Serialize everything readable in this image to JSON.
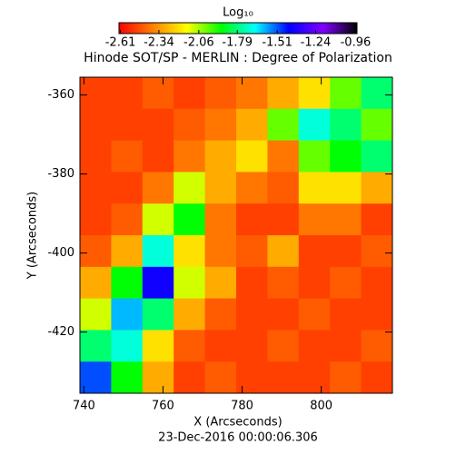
{
  "chart_data": {
    "type": "heatmap",
    "title": "Hinode SOT/SP - MERLIN : Degree of Polarization",
    "colorbar_label": "Log₁₀",
    "x_label": "X (Arcseconds)",
    "y_label": "Y (Arcseconds)",
    "subtitle": "23-Dec-2016 00:00:06.306",
    "xlim": [
      739,
      818
    ],
    "ylim": [
      -435.5,
      -355.5
    ],
    "xticks": [
      740,
      760,
      780,
      800
    ],
    "yticks": [
      -360,
      -380,
      -400,
      -420
    ],
    "colorbar_lim": [
      -2.62,
      -0.95
    ],
    "colorbar_ticks": [
      -2.61,
      -2.34,
      -2.06,
      -1.79,
      -1.51,
      -1.24,
      -0.96
    ],
    "colors": [
      "#ff0000",
      "#ff8000",
      "#ffff00",
      "#00ff00",
      "#00ffff",
      "#0000ff",
      "#8000ff",
      "#000000"
    ],
    "z": [
      [
        -2.5,
        -2.5,
        -2.45,
        -2.5,
        -2.45,
        -2.4,
        -2.3,
        -2.2,
        -2.0,
        -1.8
      ],
      [
        -2.5,
        -2.5,
        -2.5,
        -2.45,
        -2.4,
        -2.3,
        -2.0,
        -1.7,
        -1.8,
        -2.0
      ],
      [
        -2.5,
        -2.45,
        -2.5,
        -2.4,
        -2.3,
        -2.2,
        -2.4,
        -2.0,
        -1.9,
        -1.8
      ],
      [
        -2.5,
        -2.5,
        -2.4,
        -2.1,
        -2.3,
        -2.4,
        -2.45,
        -2.2,
        -2.2,
        -2.3
      ],
      [
        -2.5,
        -2.45,
        -2.1,
        -1.9,
        -2.4,
        -2.5,
        -2.5,
        -2.4,
        -2.4,
        -2.5
      ],
      [
        -2.45,
        -2.3,
        -1.7,
        -2.2,
        -2.4,
        -2.45,
        -2.3,
        -2.5,
        -2.5,
        -2.45
      ],
      [
        -2.3,
        -1.9,
        -1.4,
        -2.1,
        -2.3,
        -2.5,
        -2.45,
        -2.5,
        -2.45,
        -2.5
      ],
      [
        -2.1,
        -1.6,
        -1.8,
        -2.3,
        -2.45,
        -2.5,
        -2.5,
        -2.45,
        -2.5,
        -2.5
      ],
      [
        -1.8,
        -1.7,
        -2.2,
        -2.45,
        -2.5,
        -2.5,
        -2.45,
        -2.5,
        -2.5,
        -2.45
      ],
      [
        -1.5,
        -1.9,
        -2.3,
        -2.5,
        -2.45,
        -2.5,
        -2.5,
        -2.5,
        -2.45,
        -2.5
      ]
    ]
  }
}
